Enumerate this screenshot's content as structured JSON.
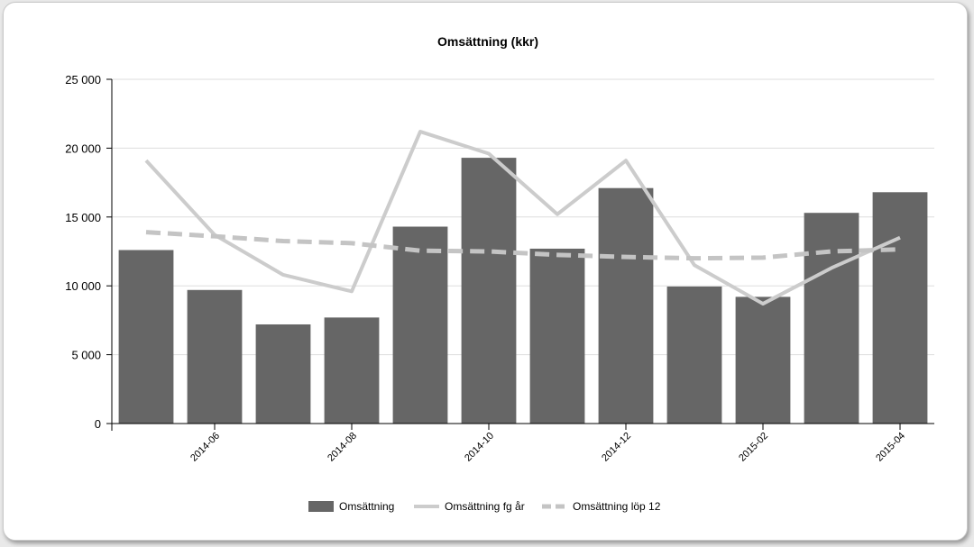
{
  "chart_data": {
    "type": "bar",
    "title": "Omsättning (kkr)",
    "xlabel": "",
    "ylabel": "",
    "ylim": [
      0,
      25000
    ],
    "y_ticks": [
      0,
      5000,
      10000,
      15000,
      20000,
      25000
    ],
    "y_tick_labels": [
      "0",
      "5 000",
      "10 000",
      "15 000",
      "20 000",
      "25 000"
    ],
    "grid": true,
    "legend_position": "bottom",
    "categories": [
      "2014-05",
      "2014-06",
      "2014-07",
      "2014-08",
      "2014-09",
      "2014-10",
      "2014-11",
      "2014-12",
      "2015-01",
      "2015-02",
      "2015-03",
      "2015-04"
    ],
    "x_tick_labels": [
      "2014-06",
      "2014-08",
      "2014-10",
      "2014-12",
      "2015-02",
      "2015-04"
    ],
    "series": [
      {
        "name": "Omsättning",
        "type": "bar",
        "color": "#666666",
        "values": [
          12600,
          9700,
          7200,
          7700,
          14300,
          19300,
          12700,
          17100,
          9950,
          9200,
          15300,
          16800
        ]
      },
      {
        "name": "Omsättning fg år",
        "type": "line",
        "color": "#cccccc",
        "values": [
          19100,
          13700,
          10800,
          9600,
          21200,
          19600,
          15200,
          19100,
          11500,
          8700,
          11300,
          13500
        ]
      },
      {
        "name": "Omsättning löp 12",
        "type": "line-dashed",
        "color": "#c4c4c4",
        "values": [
          13900,
          13600,
          13250,
          13100,
          12550,
          12500,
          12250,
          12100,
          12000,
          12050,
          12500,
          12650
        ]
      }
    ]
  }
}
